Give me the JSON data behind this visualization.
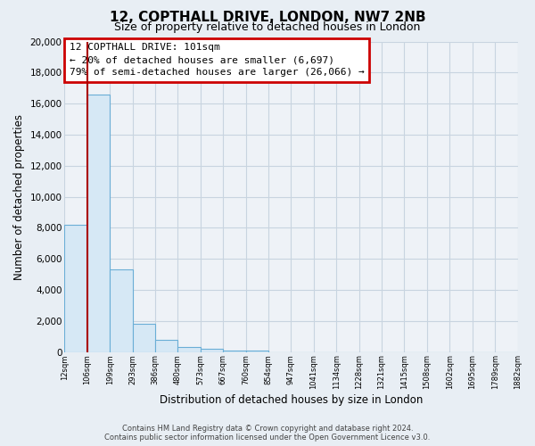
{
  "title": "12, COPTHALL DRIVE, LONDON, NW7 2NB",
  "subtitle": "Size of property relative to detached houses in London",
  "xlabel": "Distribution of detached houses by size in London",
  "ylabel": "Number of detached properties",
  "bar_heights": [
    8200,
    16600,
    5300,
    1800,
    750,
    300,
    200,
    100,
    80,
    0,
    0,
    0,
    0,
    0,
    0,
    0,
    0,
    0,
    0,
    0
  ],
  "tick_labels": [
    "12sqm",
    "106sqm",
    "199sqm",
    "293sqm",
    "386sqm",
    "480sqm",
    "573sqm",
    "667sqm",
    "760sqm",
    "854sqm",
    "947sqm",
    "1041sqm",
    "1134sqm",
    "1228sqm",
    "1321sqm",
    "1415sqm",
    "1508sqm",
    "1602sqm",
    "1695sqm",
    "1789sqm",
    "1882sqm"
  ],
  "bar_facecolor": "#d6e8f5",
  "bar_edgecolor": "#6aaed6",
  "vertical_line_color": "#aa0000",
  "vertical_line_x": 1.0,
  "annotation_title": "12 COPTHALL DRIVE: 101sqm",
  "annotation_line1": "← 20% of detached houses are smaller (6,697)",
  "annotation_line2": "79% of semi-detached houses are larger (26,066) →",
  "ylim": [
    0,
    20000
  ],
  "yticks": [
    0,
    2000,
    4000,
    6000,
    8000,
    10000,
    12000,
    14000,
    16000,
    18000,
    20000
  ],
  "background_color": "#e8eef4",
  "plot_background": "#eef2f7",
  "grid_color": "#c8d4e0",
  "footer_line1": "Contains HM Land Registry data © Crown copyright and database right 2024.",
  "footer_line2": "Contains public sector information licensed under the Open Government Licence v3.0."
}
